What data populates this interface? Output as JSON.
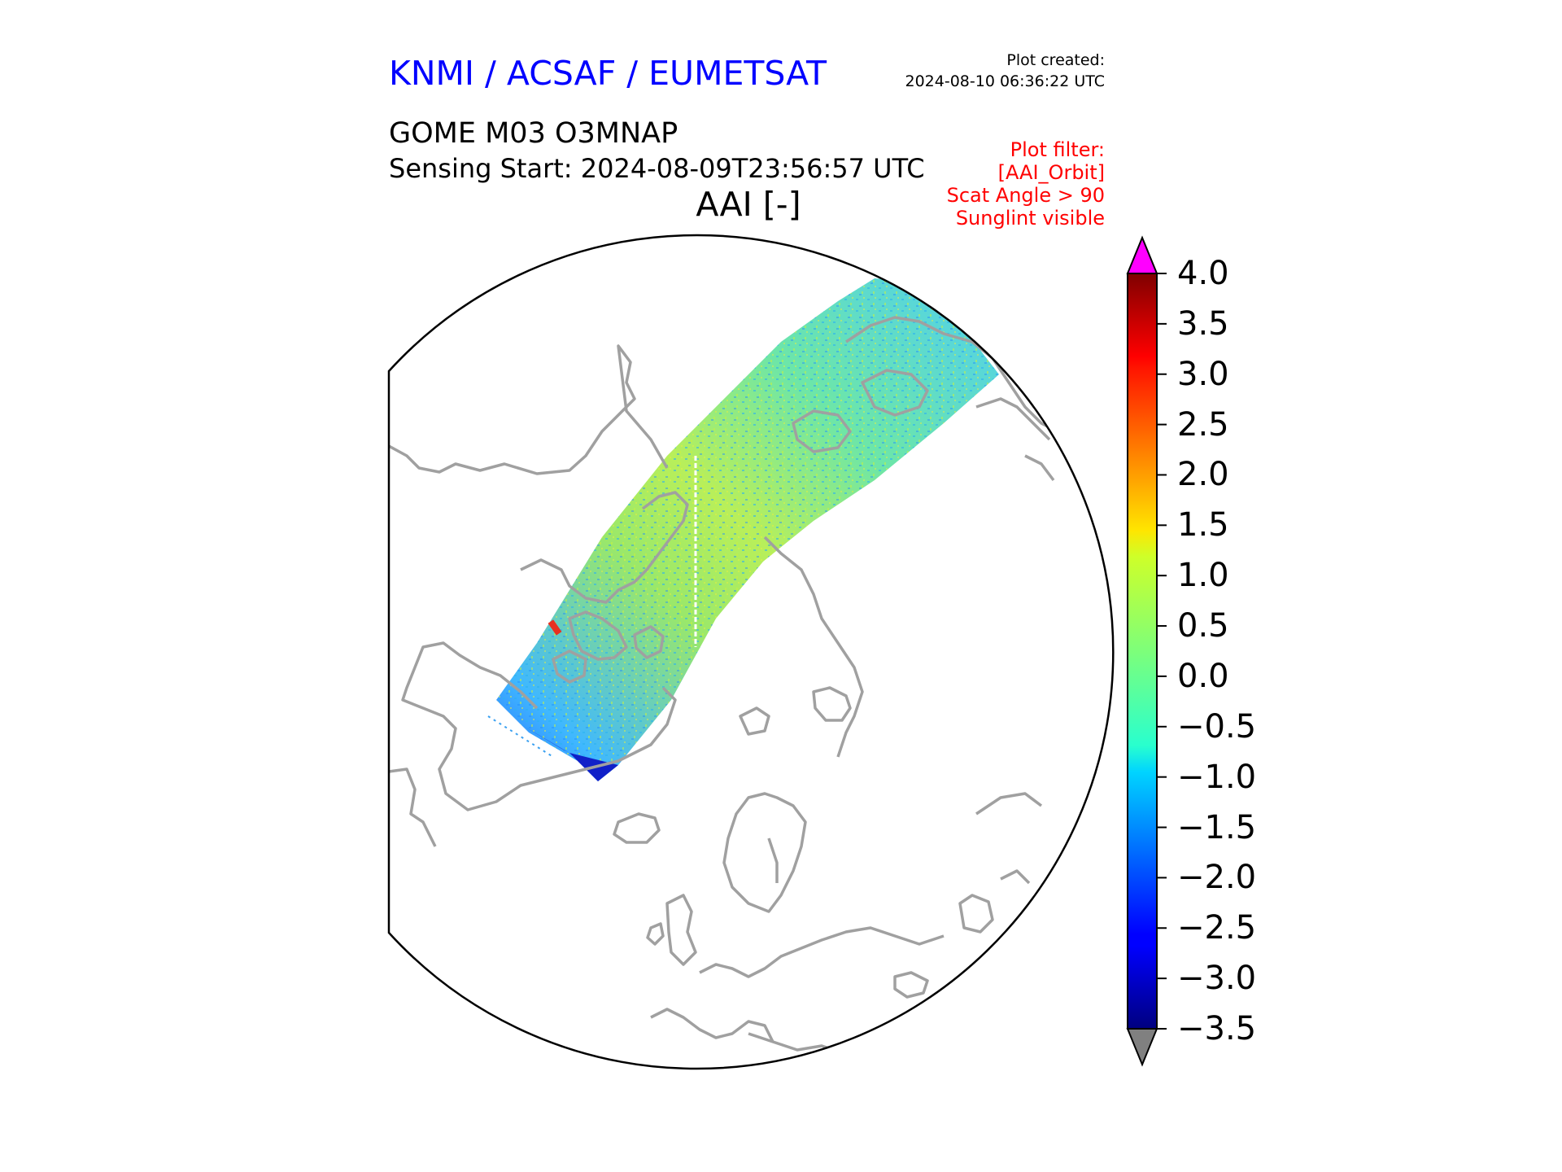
{
  "header": {
    "provider": "KNMI / ACSAF / EUMETSAT",
    "plot_created_label": "Plot created:",
    "plot_created_value": "2024-08-10 06:36:22 UTC",
    "product": "GOME M03 O3MNAP",
    "sensing_start": "Sensing Start: 2024-08-09T23:56:57 UTC",
    "variable_title": "AAI [-]"
  },
  "filter": {
    "lines": [
      "Plot filter:",
      "[AAI_Orbit]",
      "Scat Angle > 90",
      "Sunglint visible"
    ]
  },
  "map": {
    "projection": "north polar stereographic",
    "coastline_color": "#a0a0a0",
    "boundary_color": "#000000",
    "swath_dominant_color": "#5ce8b0"
  },
  "colorbar": {
    "ticks": [
      "4.0",
      "3.5",
      "3.0",
      "2.5",
      "2.0",
      "1.5",
      "1.0",
      "0.5",
      "0.0",
      "−0.5",
      "−1.0",
      "−1.5",
      "−2.0",
      "−2.5",
      "−3.0",
      "−3.5"
    ],
    "min": -3.5,
    "max": 4.0,
    "colormap": "jet",
    "over_color": "#ff00ff",
    "under_color": "#808080"
  }
}
